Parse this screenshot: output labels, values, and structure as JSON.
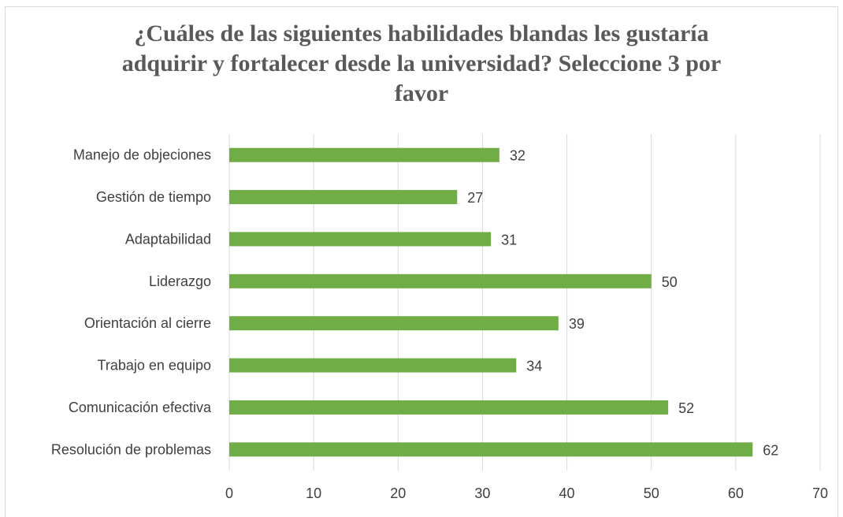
{
  "chart_data": {
    "type": "bar",
    "orientation": "horizontal",
    "title": "¿Cuáles de las siguientes habilidades blandas les gustaría adquirir y fortalecer desde la universidad? Seleccione 3 por favor",
    "categories": [
      "Manejo de objeciones",
      "Gestión de tiempo",
      "Adaptabilidad",
      "Liderazgo",
      "Orientación al cierre",
      "Trabajo en equipo",
      "Comunicación efectiva",
      "Resolución de problemas"
    ],
    "values": [
      32,
      27,
      31,
      50,
      39,
      34,
      52,
      62
    ],
    "xlim": [
      0,
      70
    ],
    "xticks": [
      0,
      10,
      20,
      30,
      40,
      50,
      60,
      70
    ],
    "grid": true,
    "data_labels": true,
    "bar_color": "#70ad47",
    "grid_color": "#d9d9d9"
  }
}
